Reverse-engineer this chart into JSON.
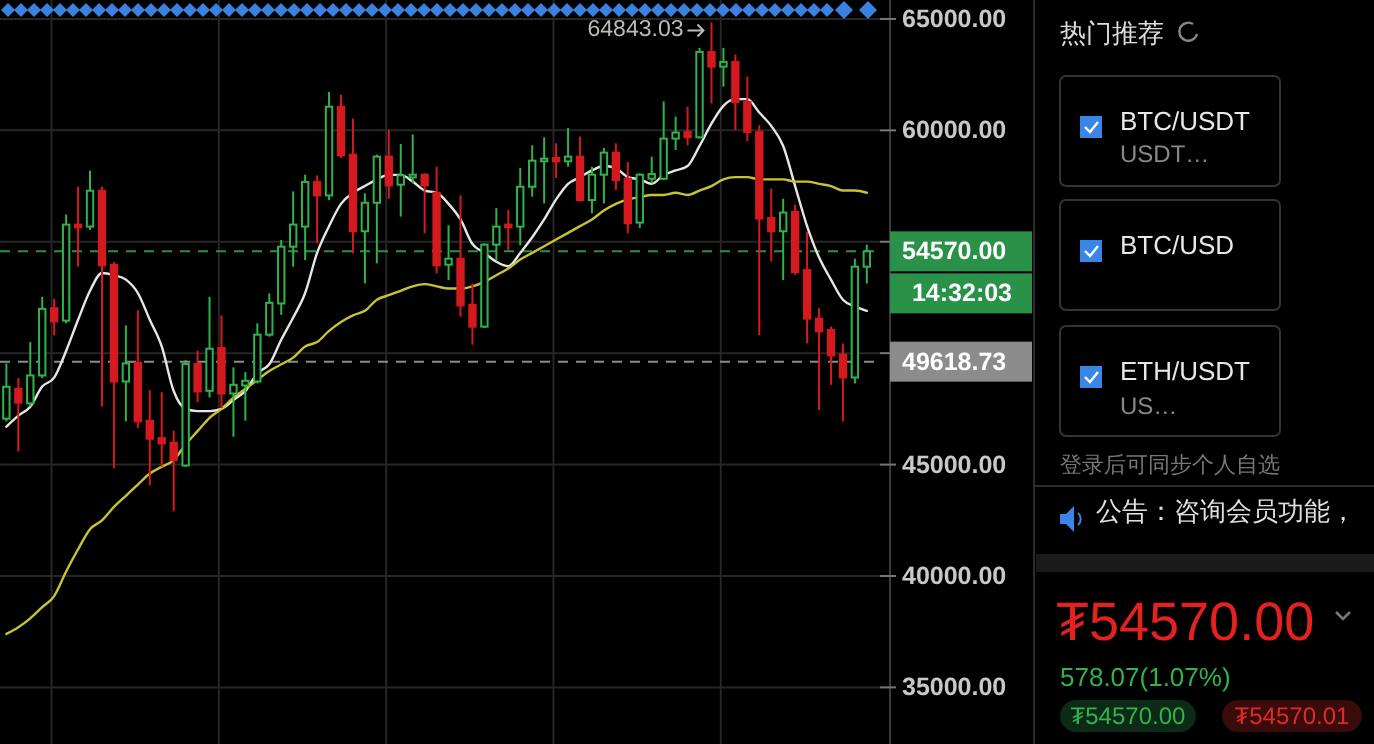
{
  "chart_data": [
    {
      "type": "candlestick",
      "categories": [
        null,
        null,
        null,
        null,
        null,
        null,
        null,
        null,
        null,
        null,
        null,
        null,
        null,
        null,
        null,
        null,
        null,
        null,
        null,
        null,
        null,
        null,
        null,
        null,
        null,
        null,
        null,
        null,
        null,
        null,
        null,
        null,
        null,
        null,
        null,
        null,
        null,
        null,
        null,
        null,
        null,
        null,
        null,
        null,
        null,
        null,
        null,
        null,
        null,
        null,
        null,
        null,
        null,
        null,
        null,
        null,
        null,
        null,
        null,
        null,
        null,
        null,
        null,
        null,
        null,
        null,
        null,
        null,
        null,
        null,
        null,
        null,
        null
      ],
      "ohlc": [
        [
          47060,
          49540,
          46940,
          48490
        ],
        [
          48400,
          48880,
          45590,
          47780
        ],
        [
          47750,
          50500,
          47600,
          49000
        ],
        [
          49000,
          52530,
          48880,
          51990
        ],
        [
          52020,
          52440,
          50800,
          51430
        ],
        [
          51460,
          56220,
          51340,
          55770
        ],
        [
          55770,
          57470,
          53880,
          55650
        ],
        [
          55680,
          58190,
          55530,
          57290
        ],
        [
          57290,
          57470,
          47600,
          53940
        ],
        [
          53970,
          54090,
          44840,
          48730
        ],
        [
          48730,
          51250,
          46940,
          49540
        ],
        [
          49570,
          51930,
          46640,
          46940
        ],
        [
          46970,
          48340,
          44060,
          46160
        ],
        [
          46190,
          48250,
          44900,
          45950
        ],
        [
          45980,
          46520,
          42900,
          45200
        ],
        [
          44960,
          49690,
          44900,
          49510
        ],
        [
          49510,
          50110,
          47800,
          48280
        ],
        [
          48310,
          52530,
          48010,
          50200
        ],
        [
          50230,
          51700,
          47540,
          48190
        ],
        [
          48190,
          49360,
          46250,
          48580
        ],
        [
          48550,
          49150,
          46970,
          48760
        ],
        [
          48730,
          51340,
          48640,
          50830
        ],
        [
          50830,
          52680,
          50740,
          52260
        ],
        [
          52230,
          55080,
          51720,
          54780
        ],
        [
          54780,
          57260,
          53880,
          55770
        ],
        [
          55680,
          58010,
          54180,
          57680
        ],
        [
          57680,
          57980,
          54930,
          57080
        ],
        [
          57080,
          61720,
          56870,
          61060
        ],
        [
          61060,
          61600,
          58760,
          58880
        ],
        [
          58910,
          60530,
          54480,
          55470
        ],
        [
          55470,
          57170,
          53130,
          56750
        ],
        [
          56750,
          58910,
          54030,
          58820
        ],
        [
          58820,
          60020,
          56930,
          57530
        ],
        [
          57560,
          59390,
          56130,
          57980
        ],
        [
          57890,
          59810,
          57620,
          58010
        ],
        [
          58010,
          58070,
          55380,
          57530
        ],
        [
          57200,
          58370,
          53580,
          53940
        ],
        [
          53970,
          55740,
          53280,
          54240
        ],
        [
          54240,
          57080,
          51640,
          52140
        ],
        [
          52170,
          53130,
          50380,
          51190
        ],
        [
          51190,
          54930,
          51130,
          54870
        ],
        [
          54870,
          56510,
          54180,
          55680
        ],
        [
          55770,
          56430,
          54630,
          55650
        ],
        [
          55680,
          58310,
          54840,
          57470
        ],
        [
          57470,
          59330,
          57020,
          58640
        ],
        [
          58610,
          59690,
          56720,
          58730
        ],
        [
          58760,
          59420,
          57860,
          58610
        ],
        [
          58610,
          60110,
          58370,
          58820
        ],
        [
          58820,
          59720,
          56810,
          56870
        ],
        [
          56870,
          58370,
          56280,
          58010
        ],
        [
          58010,
          59210,
          56720,
          59000
        ],
        [
          59000,
          59420,
          57320,
          57770
        ],
        [
          57830,
          58580,
          55380,
          55830
        ],
        [
          55860,
          58070,
          55620,
          58010
        ],
        [
          57830,
          58820,
          57620,
          58040
        ],
        [
          57830,
          61300,
          57770,
          59630
        ],
        [
          59630,
          60620,
          59120,
          59900
        ],
        [
          59930,
          61060,
          59330,
          59690
        ],
        [
          59690,
          63700,
          59630,
          63520
        ],
        [
          63520,
          64843.03,
          61210,
          62860
        ],
        [
          62860,
          63700,
          61960,
          63070
        ],
        [
          63070,
          63400,
          60020,
          61270
        ],
        [
          61270,
          62410,
          59510,
          59930
        ],
        [
          59930,
          60230,
          50800,
          56040
        ],
        [
          56070,
          57380,
          54120,
          55470
        ],
        [
          55470,
          56930,
          53280,
          56310
        ],
        [
          56340,
          56660,
          53520,
          53640
        ],
        [
          53730,
          55440,
          50440,
          51550
        ],
        [
          51550,
          52020,
          47450,
          50980
        ],
        [
          51040,
          51190,
          48580,
          49900
        ],
        [
          49930,
          50440,
          46940,
          48910
        ],
        [
          48910,
          54240,
          48640,
          53880
        ],
        [
          53880,
          54870,
          53130,
          54570
        ]
      ],
      "series": [
        {
          "type": "line",
          "color": "#e6e6e6",
          "values": [
            46700,
            47200,
            47600,
            48500,
            48900,
            50100,
            51500,
            52800,
            53600,
            53500,
            53300,
            52700,
            51500,
            50300,
            48300,
            47500,
            47400,
            47400,
            47500,
            47900,
            48300,
            49100,
            49500,
            50600,
            51600,
            52700,
            54500,
            55700,
            56700,
            57200,
            57500,
            57800,
            58000,
            58000,
            57700,
            57300,
            57200,
            56700,
            56000,
            54900,
            54500,
            54100,
            53900,
            54500,
            55200,
            56000,
            56900,
            57600,
            57900,
            58200,
            58400,
            58300,
            57900,
            57800,
            57600,
            58000,
            58200,
            58400,
            59300,
            60300,
            61100,
            61400,
            61400,
            60800,
            60200,
            59300,
            57500,
            55700,
            54300,
            53300,
            52400,
            52100,
            51900
          ]
        },
        {
          "type": "line",
          "color": "#c9c232",
          "values": [
            37400,
            37700,
            38100,
            38600,
            39100,
            40200,
            41200,
            42100,
            42500,
            43100,
            43600,
            44100,
            44600,
            44900,
            45200,
            45900,
            46500,
            47100,
            47500,
            48000,
            48400,
            48800,
            49200,
            49500,
            49800,
            50300,
            50500,
            51000,
            51400,
            51700,
            51900,
            52400,
            52600,
            52800,
            53000,
            53100,
            53000,
            52900,
            52900,
            53000,
            53200,
            53500,
            53800,
            54200,
            54500,
            54800,
            55100,
            55400,
            55700,
            56000,
            56400,
            56700,
            56900,
            57000,
            57100,
            57100,
            57200,
            57100,
            57300,
            57500,
            57800,
            57900,
            57900,
            57800,
            57800,
            57800,
            57700,
            57700,
            57600,
            57500,
            57300,
            57300,
            57200
          ]
        }
      ],
      "ylim": [
        32460,
        65850
      ],
      "yticks": [
        {
          "value": 35000,
          "label": "35000.00"
        },
        {
          "value": 40000,
          "label": "40000.00"
        },
        {
          "value": 45000,
          "label": "45000.00"
        },
        {
          "value": 50000,
          "label": null
        },
        {
          "value": 55000,
          "label": null
        },
        {
          "value": 60000,
          "label": "60000.00"
        },
        {
          "value": 65000,
          "label": "65000.00"
        }
      ],
      "tick_labels": "y",
      "grid": true,
      "ref_lines": [
        {
          "axis": "y",
          "value": 54570,
          "label": "54570.00",
          "color": "#2a9148",
          "line_style": "dashed"
        },
        {
          "axis": "y",
          "value": 49618.73,
          "label": "49618.73",
          "color": "#8c8c8c",
          "line_style": "dashed"
        }
      ],
      "annotations": [
        "64843.03",
        "14:32:03"
      ]
    },
    {
      "type": "other",
      "title": "热门推荐",
      "annotations": [
        "BTC/USDT",
        "USDT…",
        "BTC/USD",
        "ETH/USDT",
        "US…",
        "登录后可同步个人自选",
        "公告：咨询会员功能，",
        "₮54570.00",
        "578.07(1.07%)",
        "₮54570.00",
        "₮54570.01"
      ]
    }
  ]
}
